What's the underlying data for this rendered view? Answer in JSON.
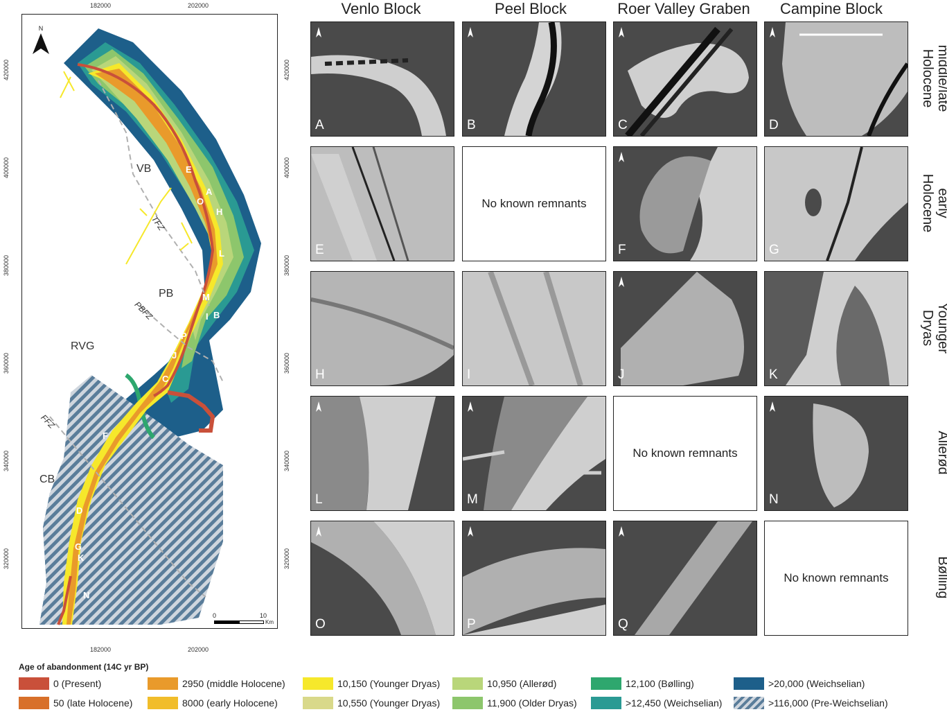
{
  "map": {
    "top_ticks": [
      "182000",
      "202000"
    ],
    "bottom_ticks": [
      "182000",
      "202000"
    ],
    "left_ticks": [
      "420000",
      "400000",
      "380000",
      "360000",
      "340000",
      "320000"
    ],
    "right_ticks": [
      "420000",
      "400000",
      "380000",
      "360000",
      "340000",
      "320000"
    ],
    "north": "N",
    "block_labels": [
      "VB",
      "PB",
      "RVG",
      "CB"
    ],
    "fault_labels": [
      "TFZ",
      "PBFZ",
      "FFZ"
    ],
    "site_letters": [
      "E",
      "A",
      "O",
      "H",
      "L",
      "M",
      "I",
      "B",
      "P",
      "J",
      "C",
      "Q",
      "F",
      "D",
      "G",
      "K",
      "N"
    ],
    "scale": {
      "zero": "0",
      "ten": "10",
      "unit": "Km"
    }
  },
  "columns": [
    "Venlo Block",
    "Peel Block",
    "Roer Valley Graben",
    "Campine Block"
  ],
  "rows": [
    {
      "label_line1": "middle/late",
      "label_line2": "Holocene"
    },
    {
      "label_line1": "early",
      "label_line2": "Holocene"
    },
    {
      "label_line1": "Younger",
      "label_line2": "Dryas"
    },
    {
      "label_line1": "",
      "label_line2": "Allerød"
    },
    {
      "label_line1": "",
      "label_line2": "Bølling"
    }
  ],
  "panels": [
    [
      "A",
      "B",
      "C",
      "D"
    ],
    [
      "E",
      "",
      "F",
      "G"
    ],
    [
      "H",
      "I",
      "J",
      "K"
    ],
    [
      "L",
      "M",
      "",
      "N"
    ],
    [
      "O",
      "P",
      "Q",
      ""
    ]
  ],
  "no_remnants_text": "No known remnants",
  "legend": {
    "title": "Age of abandonment (14C yr BP)",
    "items": [
      {
        "label": "0 (Present)",
        "color": "#c9503a"
      },
      {
        "label": "50 (late Holocene)",
        "color": "#d8702a"
      },
      {
        "label": "2950 (middle Holocene)",
        "color": "#e99a2b"
      },
      {
        "label": "8000 (early Holocene)",
        "color": "#f1bd2a"
      },
      {
        "label": "10,150 (Younger Dryas)",
        "color": "#f6e82b"
      },
      {
        "label": "10,550 (Younger Dryas)",
        "color": "#d9d98a"
      },
      {
        "label": "10,950 (Allerød)",
        "color": "#b9d67a"
      },
      {
        "label": "11,900 (Older Dryas)",
        "color": "#8dc66c"
      },
      {
        "label": "12,100 (Bølling)",
        "color": "#2ea76e"
      },
      {
        "label": ">12,450 (Weichselian)",
        "color": "#2a9a93"
      },
      {
        "label": ">20,000 (Weichselian)",
        "color": "#1d5f8a"
      },
      {
        "label": ">116,000 (Pre-Weichselian)",
        "color": "hatch"
      }
    ]
  }
}
